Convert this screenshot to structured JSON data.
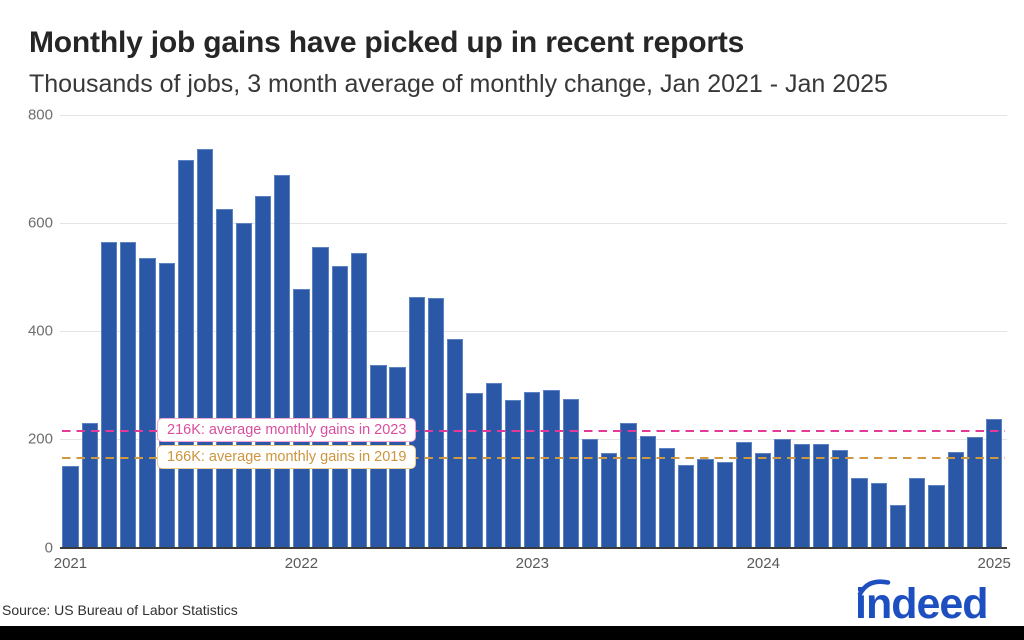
{
  "header": {
    "title": "Monthly job gains have picked up in recent reports",
    "subtitle": "Thousands of jobs, 3 month average of monthly change, Jan 2021 - Jan 2025"
  },
  "footer": {
    "source": "Source: US Bureau of Labor Statistics",
    "logo_text": "indeed"
  },
  "chart_data": {
    "type": "bar",
    "title": "Monthly job gains have picked up in recent reports",
    "subtitle": "Thousands of jobs, 3 month average of monthly change, Jan 2021 - Jan 2025",
    "ylabel": "Thousands of jobs (3 month average of monthly change)",
    "xlabel": "",
    "ylim": [
      0,
      800
    ],
    "yticks": [
      0,
      200,
      400,
      600,
      800
    ],
    "grid": true,
    "x": [
      "Jan 2021",
      "Feb 2021",
      "Mar 2021",
      "Apr 2021",
      "May 2021",
      "Jun 2021",
      "Jul 2021",
      "Aug 2021",
      "Sep 2021",
      "Oct 2021",
      "Nov 2021",
      "Dec 2021",
      "Jan 2022",
      "Feb 2022",
      "Mar 2022",
      "Apr 2022",
      "May 2022",
      "Jun 2022",
      "Jul 2022",
      "Aug 2022",
      "Sep 2022",
      "Oct 2022",
      "Nov 2022",
      "Dec 2022",
      "Jan 2023",
      "Feb 2023",
      "Mar 2023",
      "Apr 2023",
      "May 2023",
      "Jun 2023",
      "Jul 2023",
      "Aug 2023",
      "Sep 2023",
      "Oct 2023",
      "Nov 2023",
      "Dec 2023",
      "Jan 2024",
      "Feb 2024",
      "Mar 2024",
      "Apr 2024",
      "May 2024",
      "Jun 2024",
      "Jul 2024",
      "Aug 2024",
      "Sep 2024",
      "Oct 2024",
      "Nov 2024",
      "Dec 2024",
      "Jan 2025"
    ],
    "values": [
      150,
      231,
      565,
      565,
      536,
      526,
      716,
      737,
      627,
      601,
      651,
      689,
      478,
      555,
      521,
      545,
      337,
      334,
      464,
      462,
      385,
      286,
      304,
      272,
      288,
      291,
      275,
      200,
      174,
      231,
      207,
      184,
      152,
      164,
      159,
      196,
      174,
      201,
      192,
      192,
      181,
      129,
      119,
      78,
      129,
      115,
      176,
      204,
      237
    ],
    "xticks": [
      {
        "label": "2021",
        "month_index": 0
      },
      {
        "label": "2022",
        "month_index": 12
      },
      {
        "label": "2023",
        "month_index": 24
      },
      {
        "label": "2024",
        "month_index": 36
      },
      {
        "label": "2025",
        "month_index": 48
      }
    ],
    "reference_lines": [
      {
        "value": 216,
        "label": "216K: average monthly gains in 2023",
        "color": "#e33a98"
      },
      {
        "value": 166,
        "label": "166K: average monthly gains in 2019",
        "color": "#d0983f"
      }
    ],
    "colors": {
      "bar": "#2b57a7",
      "pink_line": "#e33a98",
      "orange_line": "#d0983f",
      "logo_blue": "#1e4fc0"
    }
  }
}
